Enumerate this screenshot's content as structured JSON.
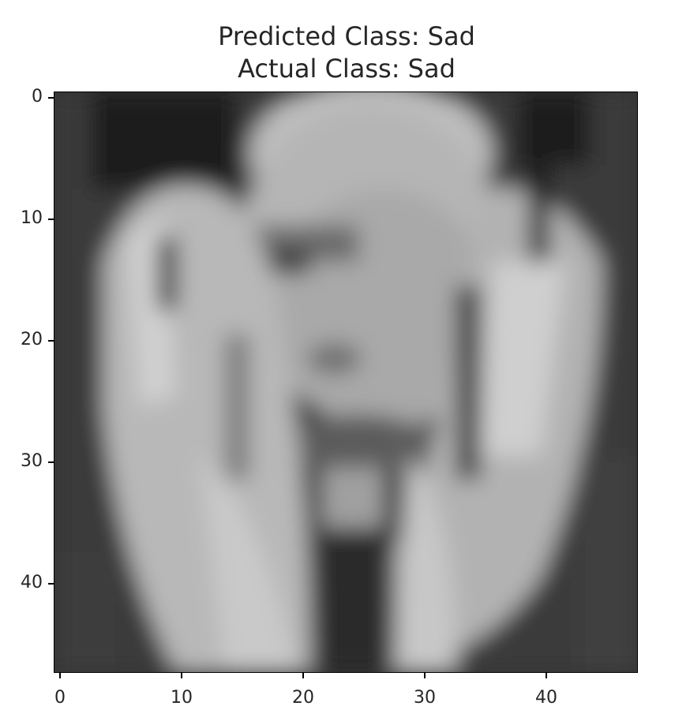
{
  "figure": {
    "title_line1": "Predicted Class: Sad",
    "title_line2": "Actual Class: Sad",
    "image_description": "48x48 grayscale low-resolution face: a person with eyes closed, head resting in both hands",
    "colormap": "gray",
    "image_size": [
      48,
      48
    ],
    "x_ticks": [
      "0",
      "10",
      "20",
      "30",
      "40"
    ],
    "y_ticks": [
      "0",
      "10",
      "20",
      "30",
      "40"
    ]
  }
}
